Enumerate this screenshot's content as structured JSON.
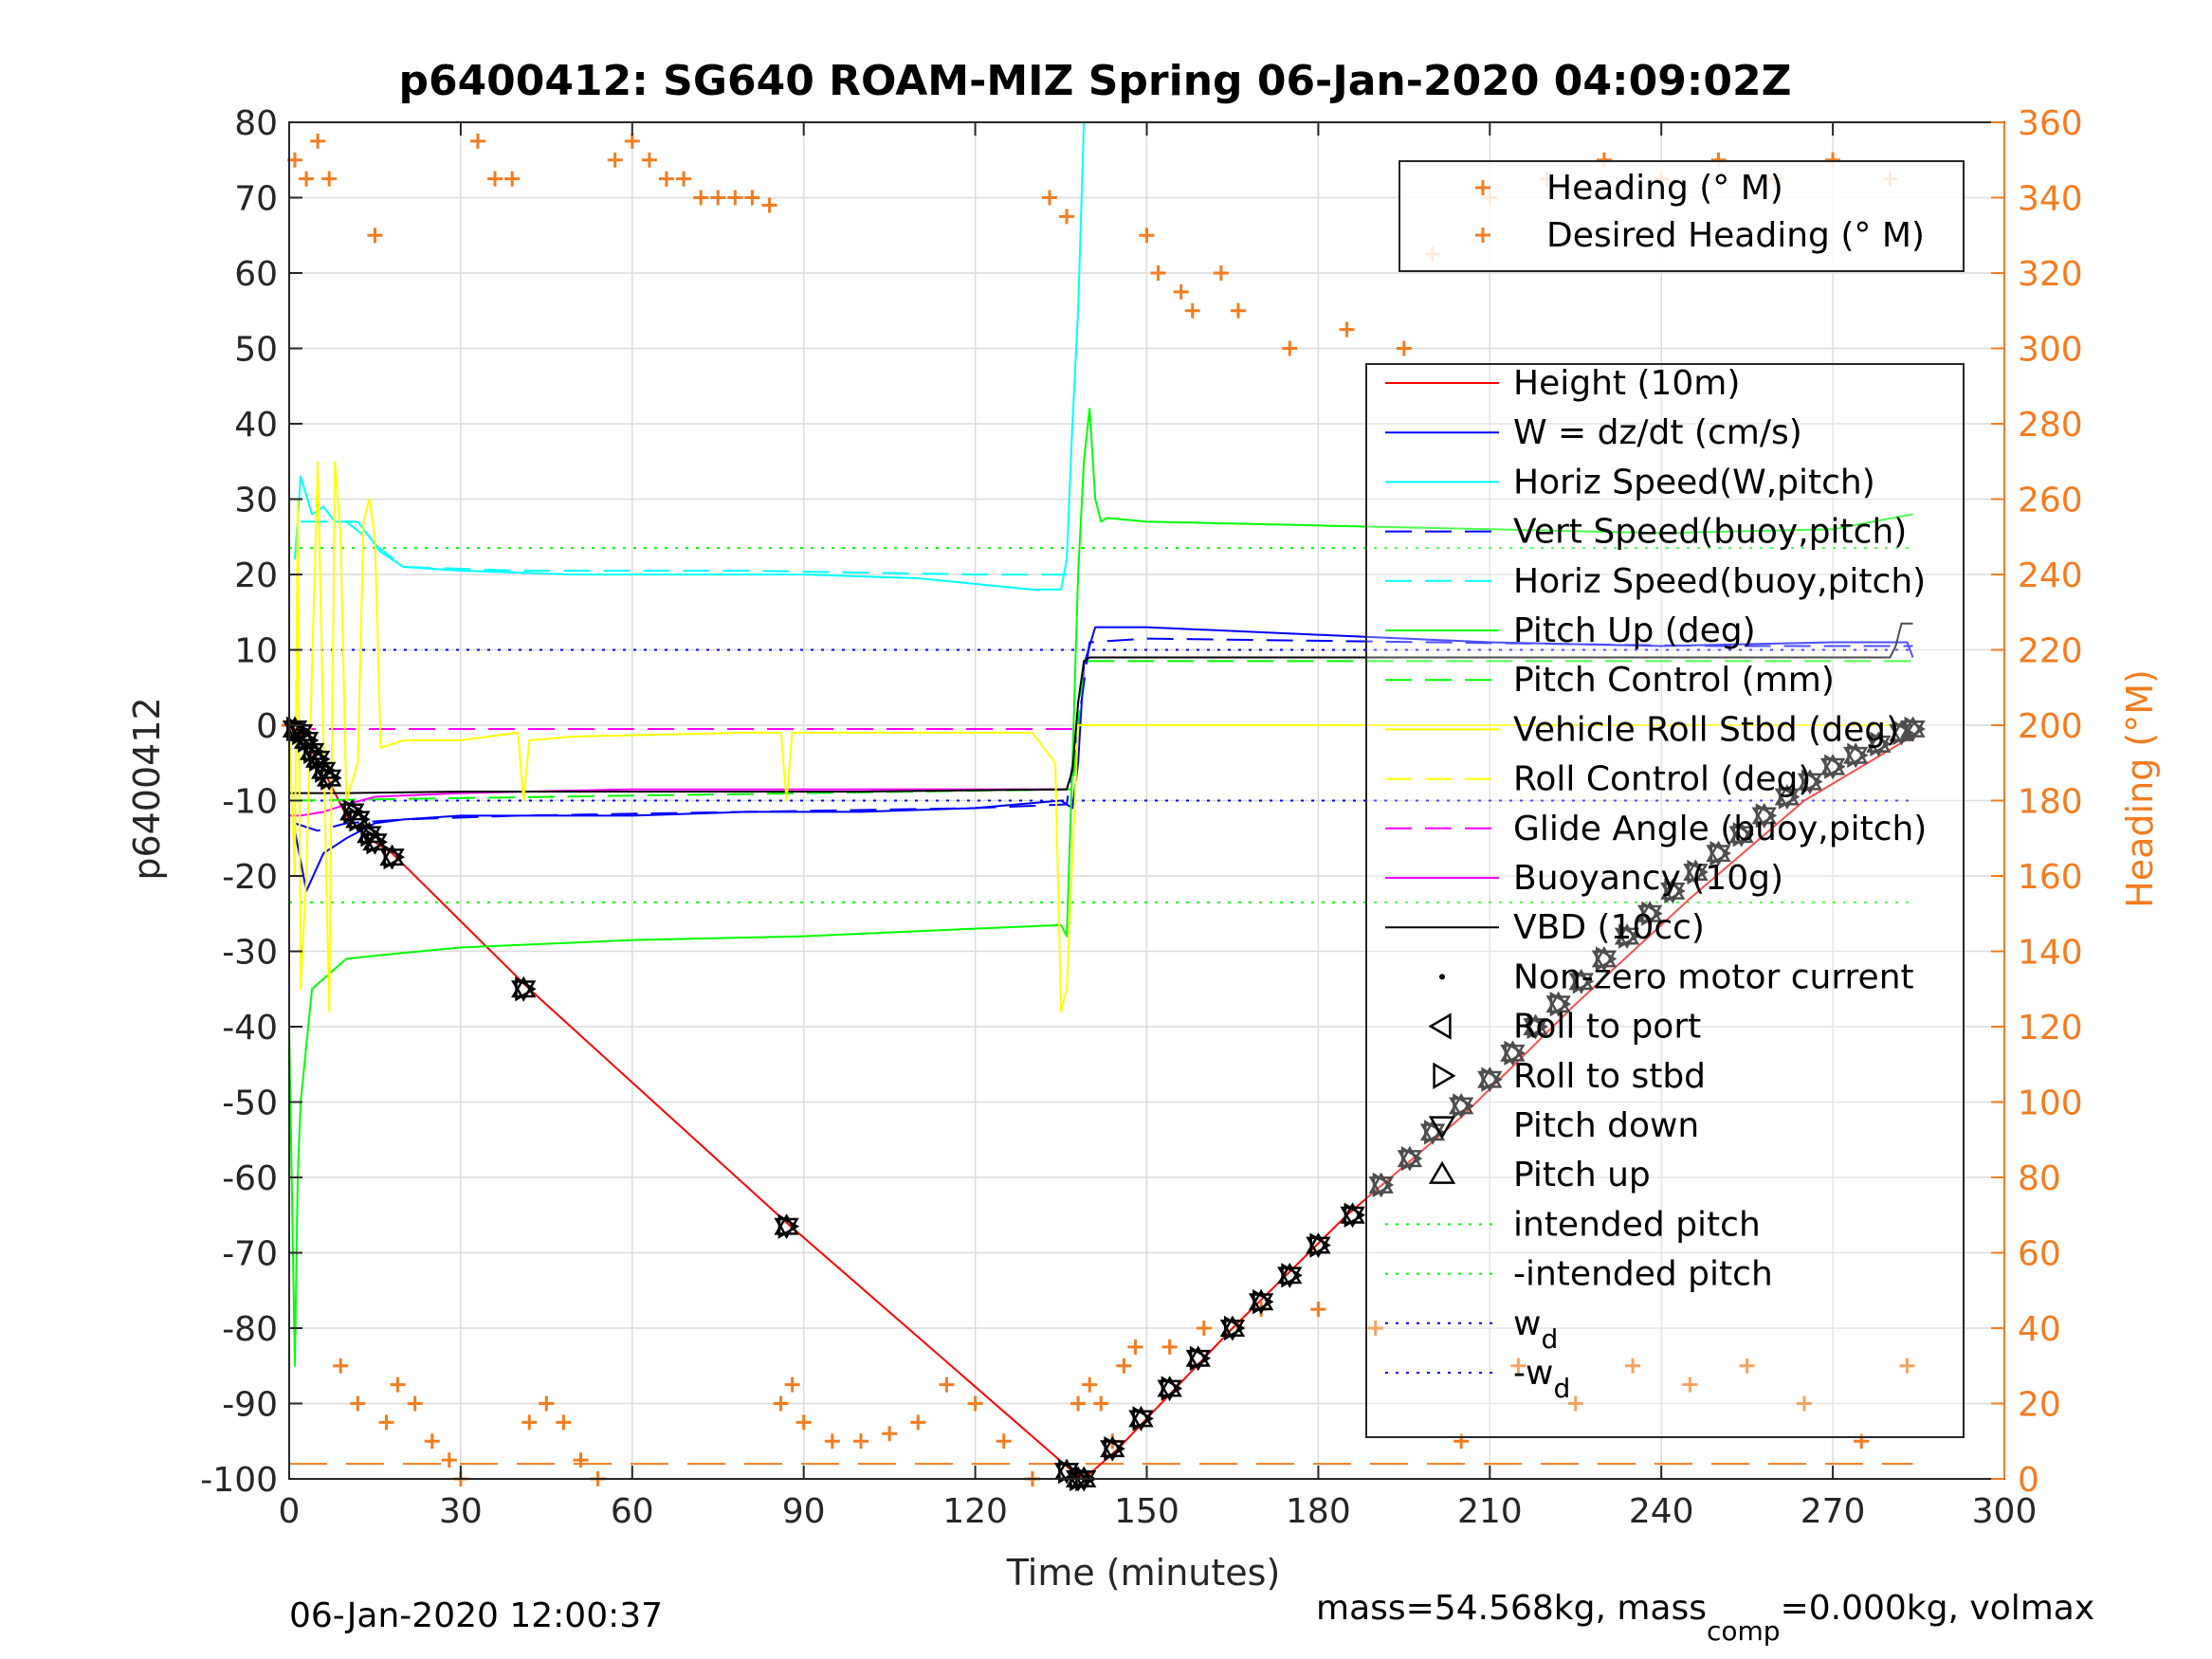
{
  "chart_data": {
    "type": "line",
    "title": "p6400412: SG640 ROAM-MIZ Spring 06-Jan-2020 04:09:02Z",
    "xlabel": "Time (minutes)",
    "ylabel": "p6400412",
    "y2label": "Heading (°M)",
    "xlim": [
      0,
      300
    ],
    "ylim": [
      -100,
      80
    ],
    "y2lim": [
      0,
      360
    ],
    "xticks": [
      "0",
      "30",
      "60",
      "90",
      "120",
      "150",
      "180",
      "210",
      "240",
      "270",
      "300"
    ],
    "yticks": [
      "80",
      "70",
      "60",
      "50",
      "40",
      "30",
      "20",
      "10",
      "0",
      "-10",
      "-20",
      "-30",
      "-40",
      "-50",
      "-60",
      "-70",
      "-80",
      "-90",
      "-100"
    ],
    "y2ticks": [
      "360",
      "340",
      "320",
      "300",
      "280",
      "260",
      "240",
      "220",
      "200",
      "180",
      "160",
      "140",
      "120",
      "100",
      "80",
      "60",
      "40",
      "20",
      "0"
    ],
    "grid": true,
    "footer_left": "06-Jan-2020 12:00:37",
    "footer_right_a": "mass=54.568kg, mass",
    "footer_right_sub": "comp",
    "footer_right_b": "=0.000kg, volmax",
    "colors": {
      "height": "#ff0000",
      "w": "#0000ff",
      "horiz_speed": "#00ffff",
      "pitch": "#00ff00",
      "roll": "#ffff00",
      "glide": "#ff00ff",
      "vbd": "#000000",
      "heading": "#f47c20",
      "axis_right": "#f47c20"
    },
    "legend_heading": {
      "placement": "top-right",
      "entries": [
        "Heading (° M)",
        "Desired Heading (° M)"
      ]
    },
    "legend_main": {
      "placement": "right",
      "entries": [
        {
          "label": "Height (10m)",
          "style": "line",
          "color": "#ff0000"
        },
        {
          "label": "W = dz/dt (cm/s)",
          "style": "line",
          "color": "#0000ff"
        },
        {
          "label": "Horiz Speed(W,pitch)",
          "style": "line",
          "color": "#00ffff"
        },
        {
          "label": "Vert Speed(buoy,pitch)",
          "style": "dash",
          "color": "#0000ff"
        },
        {
          "label": "Horiz Speed(buoy,pitch)",
          "style": "dash",
          "color": "#00ffff"
        },
        {
          "label": "Pitch Up (deg)",
          "style": "line",
          "color": "#00ff00"
        },
        {
          "label": "Pitch Control (mm)",
          "style": "dash",
          "color": "#00ff00"
        },
        {
          "label": "Vehicle Roll Stbd (deg)",
          "style": "line",
          "color": "#ffff00"
        },
        {
          "label": "Roll Control (deg)",
          "style": "dash",
          "color": "#ffff00"
        },
        {
          "label": "Glide Angle (buoy,pitch)",
          "style": "dash",
          "color": "#ff00ff"
        },
        {
          "label": "Buoyancy (10g)",
          "style": "line",
          "color": "#ff00ff"
        },
        {
          "label": "VBD (10cc)",
          "style": "line",
          "color": "#000000"
        },
        {
          "label": "Non-zero motor current",
          "style": "dot",
          "color": "#000000"
        },
        {
          "label": "Roll to port",
          "style": "tri-left",
          "color": "#000000"
        },
        {
          "label": "Roll to stbd",
          "style": "tri-right",
          "color": "#000000"
        },
        {
          "label": "Pitch down",
          "style": "tri-down",
          "color": "#000000"
        },
        {
          "label": "Pitch up",
          "style": "tri-up",
          "color": "#000000"
        },
        {
          "label": "intended pitch",
          "style": "dot-line",
          "color": "#00ff00"
        },
        {
          "label": "-intended pitch",
          "style": "dot-line",
          "color": "#00ff00"
        },
        {
          "label": "w",
          "sub": "d",
          "style": "dot-line",
          "color": "#0000ff"
        },
        {
          "label": "-w",
          "sub": "d",
          "style": "dot-line",
          "color": "#0000ff"
        }
      ]
    },
    "reference_lines": {
      "intended_pitch": 23.5,
      "neg_intended_pitch": -23.5,
      "w_d": 10,
      "neg_w_d": -10,
      "desired_heading_deg": 4,
      "glide_angle": -0.5
    },
    "series": [
      {
        "key": "height",
        "x": [
          0,
          2,
          6,
          10,
          14,
          18,
          42,
          87,
          137,
          139,
          145,
          165,
          185,
          205,
          225,
          245,
          265,
          285
        ],
        "y": [
          0,
          -1,
          -6,
          -12,
          -15,
          -17,
          -35,
          -66,
          -99,
          -100,
          -96,
          -80,
          -65,
          -52,
          -37,
          -23,
          -10,
          -1
        ]
      },
      {
        "key": "w",
        "x": [
          1,
          3,
          6,
          10,
          15,
          20,
          30,
          40,
          60,
          80,
          100,
          120,
          135,
          137,
          138,
          139,
          141,
          150,
          180,
          210,
          240,
          270,
          283,
          284
        ],
        "y": [
          -14,
          -22,
          -17,
          -15,
          -13,
          -12.5,
          -12,
          -12,
          -12,
          -11.5,
          -11.5,
          -11,
          -10,
          -11,
          -5,
          8,
          13,
          13,
          12,
          11,
          10.5,
          11,
          11,
          9
        ]
      },
      {
        "key": "vert_speed_buoy",
        "x": [
          1,
          5,
          10,
          20,
          40,
          80,
          120,
          136,
          138,
          140,
          150,
          200,
          250,
          284
        ],
        "y": [
          -13,
          -14,
          -13,
          -12.5,
          -12,
          -11.5,
          -11,
          -10.5,
          0,
          11,
          11.5,
          11,
          10.5,
          10.5
        ]
      },
      {
        "key": "horiz_speed_w",
        "x": [
          1,
          2,
          4,
          6,
          8,
          12,
          16,
          20,
          30,
          50,
          70,
          90,
          110,
          130,
          135,
          136,
          137,
          138,
          139
        ],
        "y": [
          22,
          33,
          28,
          29,
          27,
          27,
          23,
          21,
          20.5,
          20,
          20,
          20,
          19.5,
          18,
          18,
          22,
          40,
          55,
          80
        ]
      },
      {
        "key": "horiz_speed_buoy",
        "x": [
          2,
          10,
          20,
          40,
          80,
          120,
          136
        ],
        "y": [
          27,
          27,
          21,
          20.5,
          20.5,
          20,
          20
        ]
      },
      {
        "key": "pitch_up",
        "x": [
          0,
          1,
          1.5,
          2,
          4,
          7,
          10,
          16,
          30,
          60,
          90,
          120,
          135,
          136,
          137,
          138,
          139,
          140,
          141,
          142,
          143,
          150,
          180,
          210,
          240,
          270,
          284
        ],
        "y": [
          -40,
          -85,
          -60,
          -50,
          -35,
          -33,
          -31,
          -30.5,
          -29.5,
          -28.5,
          -28,
          -27,
          -26.5,
          -28,
          -5,
          20,
          35,
          42,
          30,
          27,
          27.5,
          27,
          26.5,
          26,
          25.5,
          26,
          28
        ]
      },
      {
        "key": "pitch_control",
        "x": [
          0,
          137,
          138,
          139,
          284
        ],
        "y": [
          -10,
          -8.5,
          0,
          8.5,
          8.5
        ]
      },
      {
        "key": "buoyancy",
        "x": [
          0,
          2,
          6,
          10,
          15,
          30,
          60,
          100,
          136
        ],
        "y": [
          -12,
          -12,
          -11.5,
          -10.5,
          -9.5,
          -9,
          -8.5,
          -8.5,
          -8.5
        ]
      },
      {
        "key": "vbd",
        "x": [
          0,
          2,
          3,
          10,
          30,
          60,
          100,
          136,
          137,
          138,
          139,
          140,
          160,
          200,
          280,
          281,
          282,
          284
        ],
        "y": [
          -9,
          -9,
          -9,
          -9,
          -8.8,
          -8.8,
          -8.8,
          -8.5,
          -6,
          3,
          8.5,
          9,
          9,
          9,
          9,
          10.5,
          13.5,
          13.5
        ]
      },
      {
        "key": "roll",
        "x": [
          0,
          1,
          1.5,
          2,
          3,
          5,
          7,
          8,
          9,
          10,
          12,
          13,
          14,
          15,
          16,
          20,
          30,
          40,
          41,
          42,
          50,
          80,
          86,
          87,
          88,
          100,
          130,
          134,
          135,
          136,
          138,
          140,
          150,
          165,
          180,
          195,
          210,
          225,
          240,
          255,
          270,
          284
        ],
        "y": [
          0,
          -20,
          30,
          -35,
          -20,
          35,
          -38,
          35,
          25,
          -10,
          -5,
          27,
          30,
          25,
          -3,
          -2,
          -2,
          -1,
          -10,
          -2,
          -1.5,
          -1,
          -1,
          -10,
          -1,
          -1,
          -1,
          -5,
          -38,
          -35,
          0,
          0,
          0,
          0,
          0,
          0,
          0,
          0,
          0,
          0,
          0,
          0
        ]
      },
      {
        "key": "heading",
        "x": [
          0,
          1,
          3,
          5,
          7,
          9,
          12,
          15,
          17,
          19,
          22,
          25,
          28,
          30,
          33,
          36,
          39,
          42,
          45,
          48,
          51,
          54,
          57,
          60,
          63,
          66,
          69,
          72,
          75,
          78,
          81,
          84,
          86,
          88,
          90,
          95,
          100,
          105,
          110,
          115,
          120,
          125,
          130,
          133,
          136,
          138,
          140,
          142,
          144,
          146,
          148,
          150,
          152,
          154,
          156,
          158,
          160,
          163,
          166,
          170,
          175,
          180,
          185,
          190,
          195,
          200,
          205,
          210,
          215,
          220,
          225,
          230,
          235,
          240,
          245,
          250,
          255,
          260,
          265,
          270,
          275,
          280,
          283
        ],
        "y": [
          200,
          350,
          345,
          355,
          345,
          30,
          20,
          330,
          15,
          25,
          20,
          10,
          5,
          0,
          355,
          345,
          345,
          15,
          20,
          15,
          5,
          0,
          350,
          355,
          350,
          345,
          345,
          340,
          340,
          340,
          340,
          338,
          20,
          25,
          15,
          10,
          10,
          12,
          15,
          25,
          20,
          10,
          0,
          340,
          335,
          20,
          25,
          20,
          10,
          30,
          35,
          330,
          320,
          35,
          315,
          310,
          40,
          320,
          310,
          45,
          300,
          45,
          305,
          40,
          300,
          325,
          10,
          340,
          30,
          345,
          20,
          350,
          30,
          345,
          25,
          350,
          30,
          345,
          20,
          350,
          10,
          345,
          30
        ]
      }
    ],
    "markers": [
      {
        "x": 1,
        "y": -0.5
      },
      {
        "x": 2,
        "y": -1
      },
      {
        "x": 3,
        "y": -2
      },
      {
        "x": 4,
        "y": -3.5
      },
      {
        "x": 5,
        "y": -4.5
      },
      {
        "x": 6,
        "y": -6
      },
      {
        "x": 7,
        "y": -7
      },
      {
        "x": 11,
        "y": -11.5
      },
      {
        "x": 12,
        "y": -12.5
      },
      {
        "x": 14,
        "y": -14.5
      },
      {
        "x": 15,
        "y": -15.5
      },
      {
        "x": 18,
        "y": -17.5
      },
      {
        "x": 41,
        "y": -35
      },
      {
        "x": 87,
        "y": -66.5
      },
      {
        "x": 136,
        "y": -99
      },
      {
        "x": 138,
        "y": -100
      },
      {
        "x": 139,
        "y": -100
      },
      {
        "x": 144,
        "y": -96
      },
      {
        "x": 149,
        "y": -92
      },
      {
        "x": 154,
        "y": -88
      },
      {
        "x": 159,
        "y": -84
      },
      {
        "x": 165,
        "y": -80
      },
      {
        "x": 170,
        "y": -76.5
      },
      {
        "x": 175,
        "y": -73
      },
      {
        "x": 180,
        "y": -69
      },
      {
        "x": 186,
        "y": -65
      },
      {
        "x": 191,
        "y": -61
      },
      {
        "x": 196,
        "y": -57.5
      },
      {
        "x": 200,
        "y": -54
      },
      {
        "x": 205,
        "y": -50.5
      },
      {
        "x": 210,
        "y": -47
      },
      {
        "x": 214,
        "y": -43.5
      },
      {
        "x": 218,
        "y": -40
      },
      {
        "x": 222,
        "y": -37
      },
      {
        "x": 226,
        "y": -34
      },
      {
        "x": 230,
        "y": -31
      },
      {
        "x": 234,
        "y": -28
      },
      {
        "x": 238,
        "y": -25
      },
      {
        "x": 242,
        "y": -22
      },
      {
        "x": 246,
        "y": -19.5
      },
      {
        "x": 250,
        "y": -17
      },
      {
        "x": 254,
        "y": -14.5
      },
      {
        "x": 258,
        "y": -12
      },
      {
        "x": 262,
        "y": -9.5
      },
      {
        "x": 266,
        "y": -7.5
      },
      {
        "x": 270,
        "y": -5.5
      },
      {
        "x": 274,
        "y": -4
      },
      {
        "x": 278,
        "y": -2.5
      },
      {
        "x": 282,
        "y": -1
      },
      {
        "x": 284,
        "y": -0.5
      }
    ]
  }
}
